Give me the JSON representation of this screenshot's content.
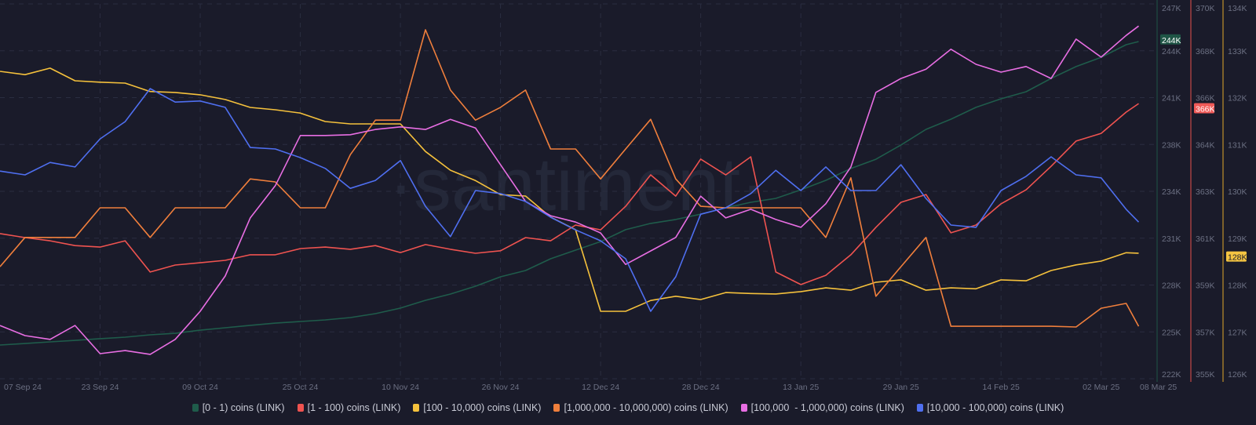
{
  "chart_data": {
    "type": "line",
    "title": "",
    "watermark": "·santiment·",
    "x_unit": "days since 07 Sep 24",
    "x": [
      0,
      4,
      8,
      12,
      16,
      20,
      24,
      28,
      32,
      36,
      40,
      44,
      48,
      52,
      56,
      60,
      64,
      68,
      72,
      76,
      80,
      84,
      88,
      92,
      96,
      100,
      104,
      108,
      112,
      116,
      120,
      124,
      128,
      132,
      136,
      140,
      144,
      148,
      152,
      156,
      160,
      164,
      168,
      172,
      176,
      180,
      182
    ],
    "x_ticks": {
      "days": [
        0,
        16,
        32,
        48,
        64,
        80,
        96,
        112,
        128,
        144,
        160,
        176,
        182
      ],
      "labels": [
        "07 Sep 24",
        "23 Sep 24",
        "09 Oct 24",
        "25 Oct 24",
        "10 Nov 24",
        "26 Nov 24",
        "12 Dec 24",
        "28 Dec 24",
        "13 Jan 25",
        "29 Jan 25",
        "14 Feb 25",
        "02 Mar 25",
        "08 Mar 25"
      ]
    },
    "grid": true,
    "legend_position": "bottom-center",
    "y_axes": [
      {
        "id": "a0",
        "color": "#1f5546",
        "range": [
          222,
          247
        ],
        "ticks": [
          "247K",
          "244K",
          "241K",
          "238K",
          "234K",
          "231K",
          "228K",
          "225K",
          "222K"
        ],
        "last_value_label": "244K",
        "last_value": 244.5,
        "badge_color": "#1f5546",
        "badge_text": "#ffffff"
      },
      {
        "id": "a1",
        "color": "#e5504c",
        "range": [
          355,
          370
        ],
        "ticks": [
          "370K",
          "368K",
          "366K",
          "364K",
          "363K",
          "361K",
          "359K",
          "357K",
          "355K"
        ],
        "last_value_label": "366K",
        "last_value": 366.0,
        "badge_color": "#f05a58",
        "badge_text": "#ffffff"
      },
      {
        "id": "a2",
        "color": "#e0a72a",
        "range": [
          126,
          134
        ],
        "ticks": [
          "134K",
          "133K",
          "132K",
          "131K",
          "130K",
          "129K",
          "128K",
          "127K",
          "126K"
        ],
        "last_value_label": "128K",
        "last_value": 128.6,
        "badge_color": "#f5c542",
        "badge_text": "#1a1b2a"
      },
      {
        "id": "rel",
        "hidden": true,
        "range": [
          0,
          100
        ]
      }
    ],
    "series": [
      {
        "name": "[0 - 1) coins (LINK)",
        "color": "#1f5c4b",
        "axis": "a0",
        "values": [
          224.25,
          224.35,
          224.46,
          224.56,
          224.67,
          224.77,
          224.93,
          225.03,
          225.24,
          225.4,
          225.56,
          225.71,
          225.82,
          225.92,
          226.08,
          226.34,
          226.71,
          227.23,
          227.65,
          228.17,
          228.8,
          229.22,
          230.0,
          230.58,
          231.15,
          231.94,
          232.36,
          232.62,
          232.98,
          233.4,
          233.77,
          234.03,
          234.6,
          235.23,
          236.02,
          236.64,
          237.59,
          238.63,
          239.31,
          240.1,
          240.67,
          241.14,
          242.03,
          242.82,
          243.44,
          244.28,
          244.49
        ]
      },
      {
        "name": "[1 - 100) coins (LINK)",
        "color": "#ef5350",
        "axis": "a1",
        "values": [
          360.81,
          360.65,
          360.52,
          360.33,
          360.27,
          360.52,
          359.27,
          359.55,
          359.64,
          359.74,
          359.96,
          359.96,
          360.21,
          360.27,
          360.18,
          360.33,
          360.05,
          360.37,
          360.18,
          360.02,
          360.12,
          360.65,
          360.52,
          361.15,
          360.96,
          361.9,
          363.16,
          362.31,
          363.79,
          363.16,
          363.88,
          359.27,
          358.77,
          359.14,
          359.96,
          361.06,
          362.06,
          362.37,
          360.84,
          361.15,
          362.0,
          362.56,
          363.5,
          364.51,
          364.82,
          365.67,
          366.01
        ]
      },
      {
        "name": "[100 - 10,000) coins (LINK)",
        "color": "#f5c13c",
        "axis": "a2",
        "values": [
          132.56,
          132.49,
          132.63,
          132.36,
          132.33,
          132.31,
          132.13,
          132.11,
          132.06,
          131.96,
          131.79,
          131.74,
          131.67,
          131.49,
          131.44,
          131.44,
          131.44,
          130.85,
          130.45,
          130.23,
          129.93,
          129.9,
          129.45,
          129.18,
          127.44,
          127.44,
          127.67,
          127.76,
          127.69,
          127.84,
          127.82,
          127.81,
          127.86,
          127.94,
          127.89,
          128.06,
          128.11,
          127.89,
          127.94,
          127.92,
          128.11,
          128.09,
          128.31,
          128.43,
          128.51,
          128.69,
          128.68
        ]
      },
      {
        "name": "[1,000,000 - 10,000,000) coins (LINK)",
        "color": "#f07f3c",
        "axis": "rel",
        "values": [
          29.9,
          37.7,
          37.7,
          37.7,
          45.6,
          45.6,
          37.7,
          45.6,
          45.6,
          45.6,
          53.3,
          52.5,
          45.6,
          45.6,
          59.8,
          69.0,
          69.0,
          93.1,
          77.0,
          69.0,
          72.4,
          77.0,
          61.3,
          61.3,
          53.3,
          61.3,
          69.2,
          53.3,
          46.0,
          45.6,
          45.6,
          45.6,
          45.6,
          37.7,
          53.6,
          22.0,
          29.9,
          37.7,
          14.0,
          14.0,
          14.0,
          14.0,
          14.0,
          13.8,
          18.8,
          20.1,
          14.0
        ]
      },
      {
        "name": "[100,000  - 1,000,000) coins (LINK)",
        "color": "#e86ee3",
        "axis": "rel",
        "values": [
          14.2,
          11.5,
          10.5,
          14.2,
          6.7,
          7.5,
          6.5,
          10.5,
          18.0,
          27.4,
          42.9,
          51.5,
          64.9,
          64.9,
          65.1,
          66.5,
          67.2,
          66.5,
          69.2,
          66.9,
          57.1,
          47.3,
          43.5,
          41.8,
          38.9,
          30.5,
          34.1,
          37.7,
          48.7,
          42.9,
          45.2,
          42.5,
          40.4,
          46.7,
          56.5,
          76.4,
          80.1,
          82.6,
          87.9,
          83.9,
          81.8,
          83.3,
          80.1,
          90.6,
          85.8,
          91.6,
          94.1
        ]
      },
      {
        "name": "[10,000 - 100,000) coins (LINK)",
        "color": "#4f6ff0",
        "axis": "rel",
        "values": [
          55.4,
          54.4,
          57.7,
          56.5,
          64.0,
          68.6,
          77.4,
          73.8,
          74.1,
          72.4,
          61.7,
          61.3,
          59.0,
          56.1,
          50.8,
          52.9,
          58.2,
          46.0,
          37.9,
          50.2,
          49.4,
          47.3,
          43.1,
          39.7,
          36.8,
          32.0,
          18.0,
          27.2,
          43.9,
          45.6,
          49.4,
          55.6,
          50.2,
          56.5,
          50.2,
          50.2,
          57.1,
          48.1,
          41.0,
          40.4,
          50.2,
          54.0,
          59.2,
          54.4,
          53.6,
          45.2,
          41.8
        ]
      }
    ]
  }
}
